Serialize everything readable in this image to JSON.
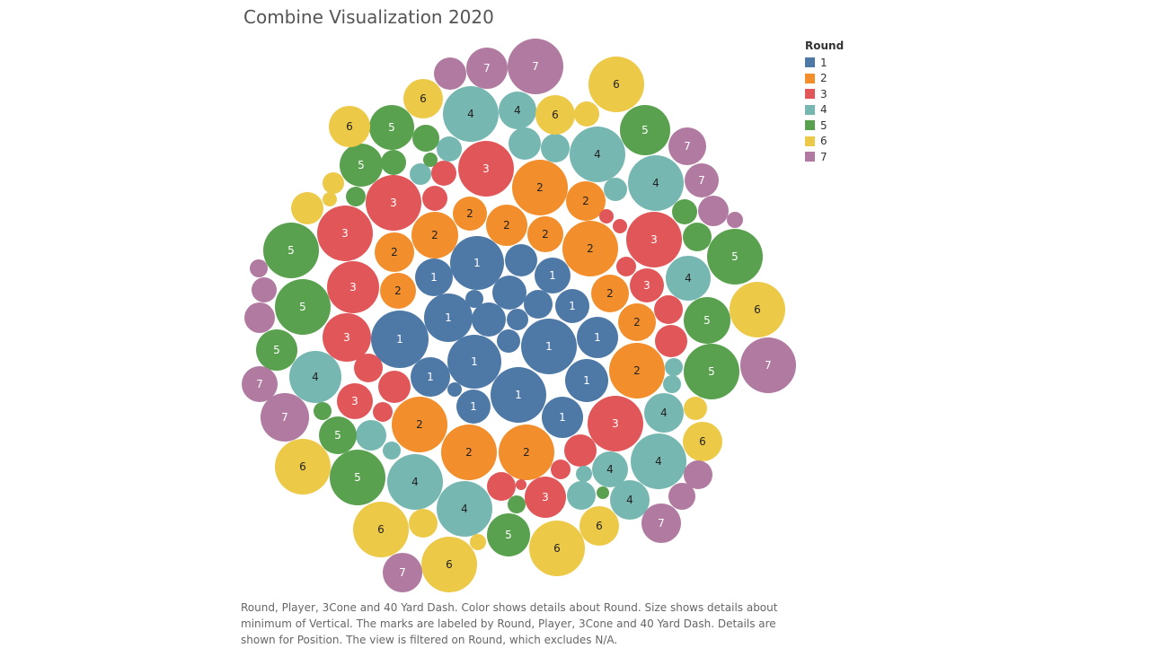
{
  "title": "Combine Visualization 2020",
  "caption": "Round, Player, 3Cone and 40 Yard Dash.  Color shows details about Round.  Size shows details about minimum of Vertical.  The marks are labeled by Round, Player, 3Cone and 40 Yard Dash.  Details are shown for Position. The view is filtered on Round, which excludes N/A.",
  "legend": {
    "title": "Round",
    "items": [
      {
        "label": "1",
        "color": "#4e79a7"
      },
      {
        "label": "2",
        "color": "#f28e2b"
      },
      {
        "label": "3",
        "color": "#e15759"
      },
      {
        "label": "4",
        "color": "#76b7b2"
      },
      {
        "label": "5",
        "color": "#59a14f"
      },
      {
        "label": "6",
        "color": "#edc948"
      },
      {
        "label": "7",
        "color": "#b07aa1"
      }
    ]
  },
  "chart_data": {
    "type": "packed-bubble",
    "color_field": "Round",
    "size_field": "minimum of Vertical",
    "rounds": [
      {
        "round": "1",
        "count": 24
      },
      {
        "round": "2",
        "count": 19
      },
      {
        "round": "3",
        "count": 24
      },
      {
        "round": "4",
        "count": 23
      },
      {
        "round": "5",
        "count": 19
      },
      {
        "round": "6",
        "count": 20
      },
      {
        "round": "7",
        "count": 15
      }
    ]
  }
}
